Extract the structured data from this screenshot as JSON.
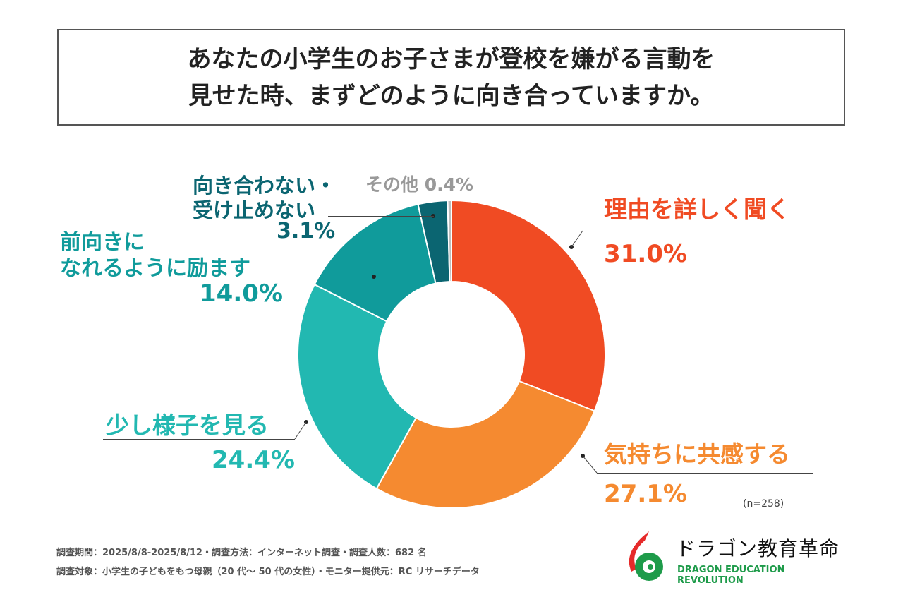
{
  "title": {
    "line1": "あなたの小学生のお子さまが登校を嫌がる言動を",
    "line2": "見せた時、まずどのように向き合っていますか。"
  },
  "chart_data": {
    "type": "pie",
    "donut": true,
    "title": "あなたの小学生のお子さまが登校を嫌がる言動を見せた時、まずどのように向き合っていますか。",
    "categories": [
      "理由を詳しく聞く",
      "気持ちに共感する",
      "少し様子を見る",
      "前向きになれるように励ます",
      "向き合わない・受け止めない",
      "その他"
    ],
    "values": [
      31.0,
      27.1,
      24.4,
      14.0,
      3.1,
      0.4
    ],
    "value_labels": [
      "31.0%",
      "27.1%",
      "24.4%",
      "14.0%",
      "3.1%",
      "0.4%"
    ],
    "colors": [
      "#F04B23",
      "#F58A30",
      "#22B8B1",
      "#109B9B",
      "#0B6571",
      "#BDBDBD"
    ],
    "legend": "none",
    "note": "(n=258)"
  },
  "labels": {
    "reason": "理由を詳しく聞く",
    "empathy": "気持ちに共感する",
    "watch": "少し様子を見る",
    "encourage1": "前向きに",
    "encourage2": "なれるように励ます",
    "ignore1": "向き合わない・",
    "ignore2": "受け止めない",
    "other": "その他"
  },
  "footer": {
    "line1": "調査期間：2025/8/8-2025/8/12・調査方法：インターネット調査・調査人数：682 名",
    "line2": "調査対象：小学生の子どもをもつ母親（20 代～ 50 代の女性）・モニター提供元：RC リサーチデータ"
  },
  "logo": {
    "jp": "ドラゴン教育革命",
    "en": "DRAGON EDUCATION REVOLUTION"
  }
}
